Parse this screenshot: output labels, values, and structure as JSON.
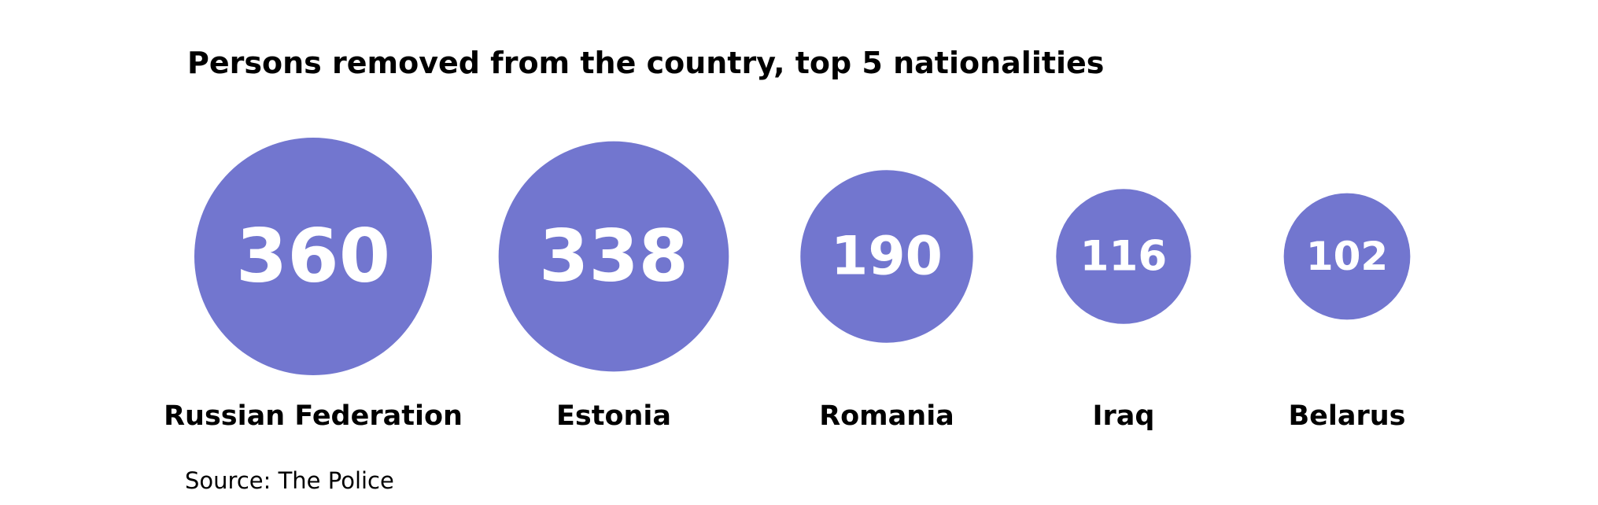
{
  "chart_data": {
    "type": "bubble",
    "title": "Persons removed from the country, top 5 nationalities",
    "categories": [
      "Russian Federation",
      "Estonia",
      "Romania",
      "Iraq",
      "Belarus"
    ],
    "values": [
      360,
      338,
      190,
      116,
      102
    ],
    "value_labels": [
      "360",
      "338",
      "190",
      "116",
      "102"
    ],
    "bubble_color": "#7276cf",
    "value_label_color": "#ffffff",
    "legend": "none",
    "grid": false
  },
  "source": "Source: The Police"
}
